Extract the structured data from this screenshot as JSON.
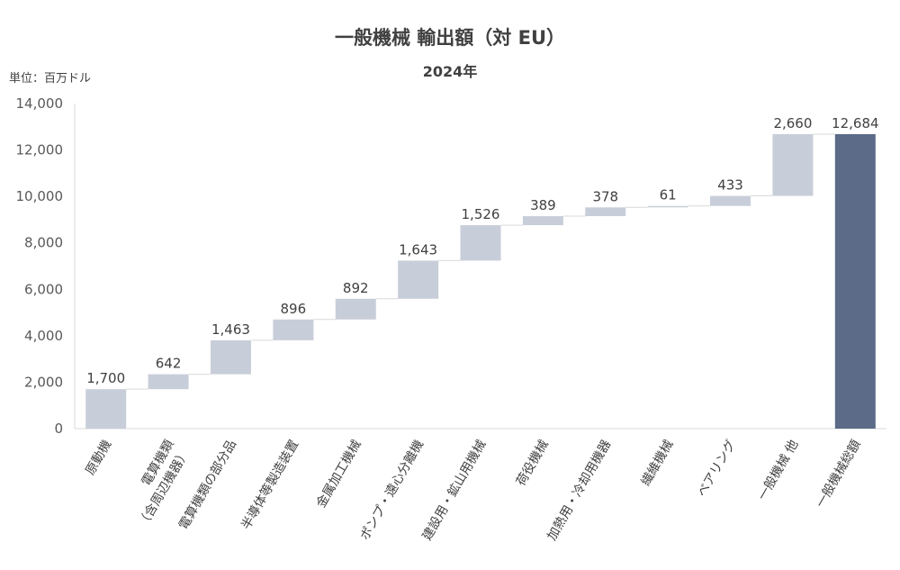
{
  "title": "一般機械 輸出額（対 EU）",
  "subtitle": "2024年",
  "unit_label": "単位：百万ドル",
  "chart_data": {
    "type": "bar",
    "subtype": "waterfall",
    "title": "一般機械 輸出額（対 EU）",
    "subtitle": "2024年",
    "ylabel": "単位：百万ドル",
    "ylim": [
      0,
      14000
    ],
    "yticks": [
      "0",
      "2,000",
      "4,000",
      "6,000",
      "8,000",
      "10,000",
      "12,000",
      "14,000"
    ],
    "grid": false,
    "categories": [
      "原動機",
      "電算機類\n（含周辺機器）",
      "電算機類の部分品",
      "半導体等製造装置",
      "金属加工機械",
      "ポンプ・遠心分離機",
      "建設用・鉱山用機械",
      "荷役機械",
      "加熱用・冷却用機器",
      "繊維機械",
      "ベアリング",
      "一般機械 他",
      "一般機械総額"
    ],
    "values": [
      1700,
      642,
      1463,
      896,
      892,
      1643,
      1526,
      389,
      378,
      61,
      433,
      2660,
      12684
    ],
    "value_labels": [
      "1,700",
      "642",
      "1,463",
      "896",
      "892",
      "1,643",
      "1,526",
      "389",
      "378",
      "61",
      "433",
      "2,660",
      "12,684"
    ],
    "total_index": 12,
    "colors": {
      "increment": "#C8CED9",
      "total": "#5B6B88",
      "axis": "#D9D9D9"
    }
  }
}
